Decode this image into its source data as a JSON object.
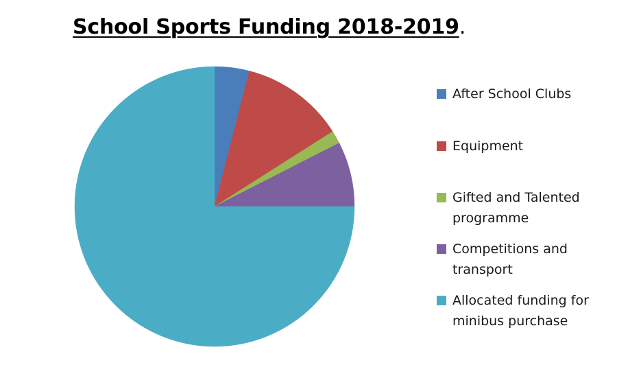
{
  "chart_data": {
    "type": "pie",
    "title": "School Sports Funding 2018-2019",
    "title_suffix": ".",
    "start_angle_deg": 0,
    "direction": "clockwise",
    "slices": [
      {
        "label": "After School Clubs",
        "value": 4,
        "color": "#4a7ebb"
      },
      {
        "label": "Equipment",
        "value": 12,
        "color": "#be4b48"
      },
      {
        "label": "Gifted and Talented programme",
        "value": 1.5,
        "color": "#98b954"
      },
      {
        "label": "Competitions and transport",
        "value": 7.5,
        "color": "#7d60a0"
      },
      {
        "label": "Allocated funding for minibus purchase",
        "value": 75,
        "color": "#4bacc6"
      }
    ],
    "legend_position": "right"
  }
}
